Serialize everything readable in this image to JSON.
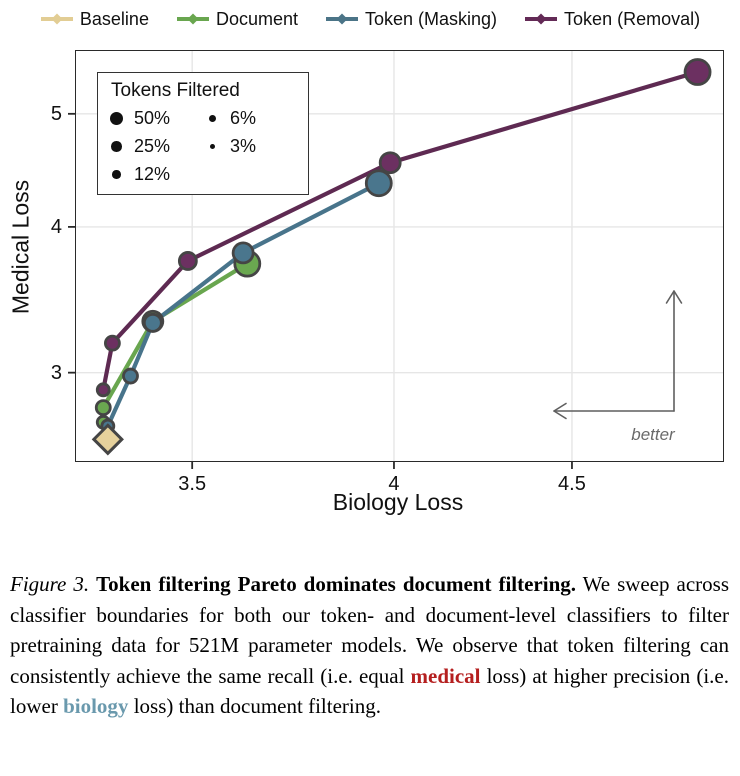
{
  "series_legend": {
    "items": [
      {
        "label": "Baseline",
        "color": "#e2cd94"
      },
      {
        "label": "Document",
        "color": "#69a64f"
      },
      {
        "label": "Token (Masking)",
        "color": "#4b7487"
      },
      {
        "label": "Token (Removal)",
        "color": "#632a56"
      }
    ]
  },
  "chart_data": {
    "type": "line",
    "subtype": "pareto-scatter-lines",
    "title": "",
    "xlabel": "Biology Loss",
    "ylabel": "Medical Loss",
    "x_scale": "log",
    "y_scale": "log",
    "grid": true,
    "x_ticks": [
      3.5,
      4,
      4.5
    ],
    "x_tick_labels": [
      "3.5",
      "4",
      "4.5"
    ],
    "y_ticks": [
      3,
      4,
      5
    ],
    "y_tick_labels": [
      "3",
      "4",
      "5"
    ],
    "x_range": [
      3.241,
      4.973
    ],
    "y_range": [
      2.52,
      5.66
    ],
    "size_legend": {
      "title": "Tokens Filtered",
      "entries": [
        "50%",
        "25%",
        "12%",
        "6%",
        "3%"
      ]
    },
    "marker_radius_px": {
      "50%": 12.5,
      "25%": 10,
      "12%": 8.5,
      "6%": 7,
      "3%": 6
    },
    "annotation": {
      "text": "better",
      "color": "#6a6a6a"
    },
    "marker_ring_color": "#454545",
    "series": [
      {
        "name": "Baseline",
        "marker": "diamond",
        "fill": "#e6d19c",
        "line": "#e2cd94",
        "points": [
          {
            "x": 3.31,
            "y": 2.63,
            "tokens_filtered": null
          }
        ]
      },
      {
        "name": "Document",
        "marker": "circle",
        "fill": "#6aa850",
        "line": "#69a64f",
        "points": [
          {
            "x": 3.3,
            "y": 2.72,
            "tokens_filtered": "3%"
          },
          {
            "x": 3.3,
            "y": 2.8,
            "tokens_filtered": "6%"
          },
          {
            "x": 3.41,
            "y": 3.32,
            "tokens_filtered": "25%"
          },
          {
            "x": 3.63,
            "y": 3.72,
            "tokens_filtered": "50%"
          }
        ]
      },
      {
        "name": "Token (Masking)",
        "marker": "circle",
        "fill": "#4a768d",
        "line": "#48748b",
        "points": [
          {
            "x": 3.31,
            "y": 2.7,
            "tokens_filtered": "3%"
          },
          {
            "x": 3.36,
            "y": 2.98,
            "tokens_filtered": "6%"
          },
          {
            "x": 3.41,
            "y": 3.31,
            "tokens_filtered": "12%"
          },
          {
            "x": 3.62,
            "y": 3.8,
            "tokens_filtered": "25%"
          },
          {
            "x": 3.96,
            "y": 4.36,
            "tokens_filtered": "50%"
          }
        ]
      },
      {
        "name": "Token (Removal)",
        "marker": "circle",
        "fill": "#6c3061",
        "line": "#5e2a52",
        "points": [
          {
            "x": 3.3,
            "y": 2.9,
            "tokens_filtered": "3%"
          },
          {
            "x": 3.32,
            "y": 3.18,
            "tokens_filtered": "6%"
          },
          {
            "x": 3.49,
            "y": 3.74,
            "tokens_filtered": "12%"
          },
          {
            "x": 3.99,
            "y": 4.54,
            "tokens_filtered": "25%"
          },
          {
            "x": 4.89,
            "y": 5.43,
            "tokens_filtered": "50%"
          }
        ]
      }
    ]
  },
  "caption": {
    "figure_label": "Figure 3.",
    "title_bold": "Token filtering Pareto dominates document filtering.",
    "body_1": "We sweep across classifier boundaries for both our token- and document-level classifiers to filter pretraining data for 521M parameter models. We observe that token filtering can consistently achieve the same recall (i.e. equal ",
    "medical_word": "medical",
    "body_2": " loss) at higher precision (i.e. lower ",
    "biology_word": "biology",
    "body_3": " loss) than document filtering.",
    "medical_color": "#b51f1f",
    "biology_color": "#6a99ad"
  }
}
